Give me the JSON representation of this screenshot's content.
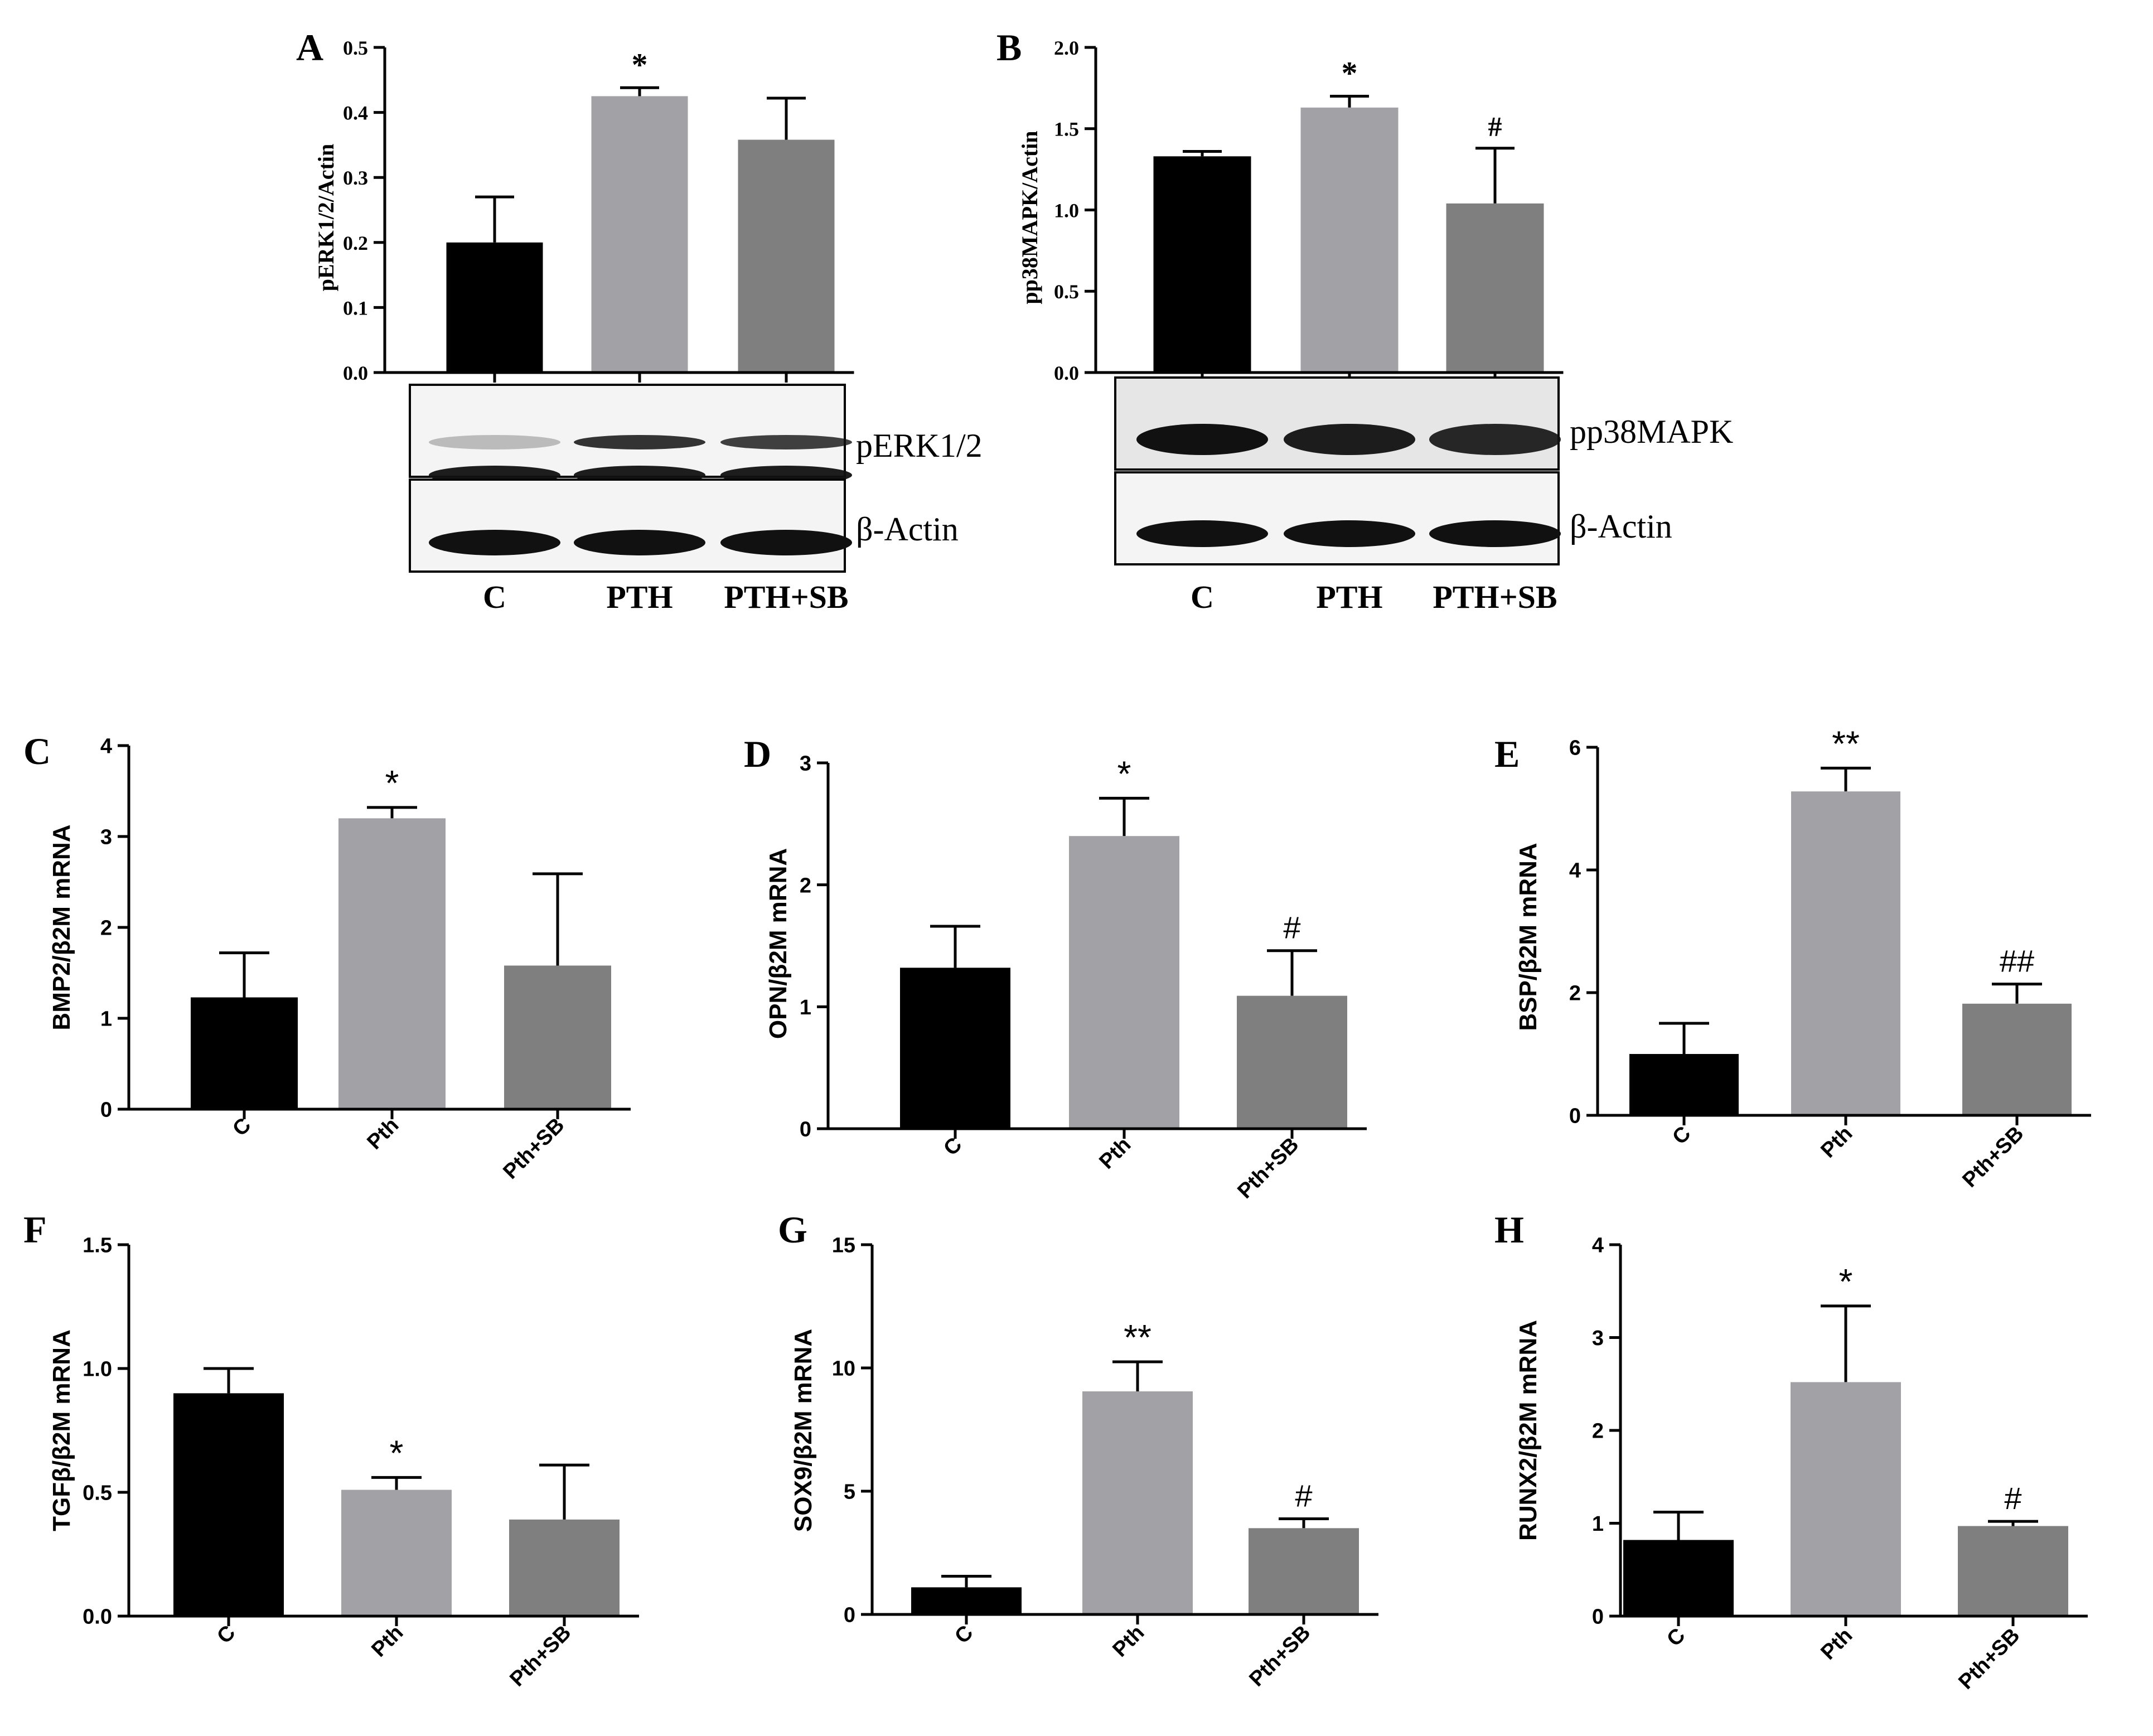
{
  "figure": {
    "colors": {
      "control": "#000000",
      "pth": "#a2a1a5",
      "pth_sb": "#7f7f7f",
      "axis": "#000000"
    }
  },
  "chart_data": [
    {
      "panel": "A",
      "type": "bar",
      "style": "serif",
      "categories": [
        "C",
        "PTH",
        "PTH+SB"
      ],
      "values": [
        0.2,
        0.425,
        0.358
      ],
      "errors": [
        0.07,
        0.013,
        0.064
      ],
      "annotations": [
        "",
        "*",
        ""
      ],
      "ylabel": "pERK1/2/Actin",
      "ylim": [
        0,
        0.5
      ],
      "yticks": [
        "0.0",
        "0.1",
        "0.2",
        "0.3",
        "0.4",
        "0.5"
      ],
      "blot": {
        "bands": [
          "pERK1/2",
          "β-Actin"
        ],
        "lanes": [
          "C",
          "PTH",
          "PTH+SB"
        ]
      }
    },
    {
      "panel": "B",
      "type": "bar",
      "style": "serif",
      "categories": [
        "C",
        "PTH",
        "PTH+SB"
      ],
      "values": [
        1.33,
        1.63,
        1.04
      ],
      "errors": [
        0.03,
        0.07,
        0.34
      ],
      "annotations": [
        "",
        "*",
        "#"
      ],
      "ylabel": "pp38MAPK/Actin",
      "ylim": [
        0,
        2.0
      ],
      "yticks": [
        "0.0",
        "0.5",
        "1.0",
        "1.5",
        "2.0"
      ],
      "blot": {
        "bands": [
          "pp38MAPK",
          "β-Actin"
        ],
        "lanes": [
          "C",
          "PTH",
          "PTH+SB"
        ]
      }
    },
    {
      "panel": "C",
      "type": "bar",
      "style": "sans",
      "categories": [
        "C",
        "Pth",
        "Pth+SB"
      ],
      "values": [
        1.23,
        3.2,
        1.58
      ],
      "errors": [
        0.49,
        0.12,
        1.01
      ],
      "annotations": [
        "",
        "*",
        ""
      ],
      "ylabel": "BMP2/β2M mRNA",
      "ylim": [
        0,
        4
      ],
      "yticks": [
        "0",
        "1",
        "2",
        "3",
        "4"
      ]
    },
    {
      "panel": "D",
      "type": "bar",
      "style": "sans",
      "categories": [
        "C",
        "Pth",
        "Pth+SB"
      ],
      "values": [
        1.32,
        2.4,
        1.09
      ],
      "errors": [
        0.34,
        0.31,
        0.37
      ],
      "annotations": [
        "",
        "*",
        "#"
      ],
      "ylabel": "OPN/β2M mRNA",
      "ylim": [
        0,
        3
      ],
      "yticks": [
        "0",
        "1",
        "2",
        "3"
      ]
    },
    {
      "panel": "E",
      "type": "bar",
      "style": "sans",
      "categories": [
        "C",
        "Pth",
        "Pth+SB"
      ],
      "values": [
        1.0,
        5.28,
        1.82
      ],
      "errors": [
        0.5,
        0.38,
        0.32
      ],
      "annotations": [
        "",
        "**",
        "##"
      ],
      "ylabel": "BSP/β2M mRNA",
      "ylim": [
        0,
        6
      ],
      "yticks": [
        "0",
        "2",
        "4",
        "6"
      ]
    },
    {
      "panel": "F",
      "type": "bar",
      "style": "sans",
      "categories": [
        "C",
        "Pth",
        "Pth+SB"
      ],
      "values": [
        0.9,
        0.51,
        0.39
      ],
      "errors": [
        0.1,
        0.05,
        0.22
      ],
      "annotations": [
        "",
        "*",
        ""
      ],
      "ylabel": "TGFβ/β2M mRNA",
      "ylim": [
        0,
        1.5
      ],
      "yticks": [
        "0.0",
        "0.5",
        "1.0",
        "1.5"
      ]
    },
    {
      "panel": "G",
      "type": "bar",
      "style": "sans",
      "categories": [
        "C",
        "Pth",
        "Pth+SB"
      ],
      "values": [
        1.1,
        9.05,
        3.5
      ],
      "errors": [
        0.45,
        1.2,
        0.38
      ],
      "annotations": [
        "",
        "**",
        "#"
      ],
      "ylabel": "SOX9/β2M mRNA",
      "ylim": [
        0,
        15
      ],
      "yticks": [
        "0",
        "5",
        "10",
        "15"
      ]
    },
    {
      "panel": "H",
      "type": "bar",
      "style": "sans",
      "categories": [
        "C",
        "Pth",
        "Pth+SB"
      ],
      "values": [
        0.82,
        2.52,
        0.97
      ],
      "errors": [
        0.3,
        0.82,
        0.05
      ],
      "annotations": [
        "",
        "*",
        "#"
      ],
      "ylabel": "RUNX2/β2M mRNA",
      "ylim": [
        0,
        4
      ],
      "yticks": [
        "0",
        "1",
        "2",
        "3",
        "4"
      ]
    }
  ]
}
